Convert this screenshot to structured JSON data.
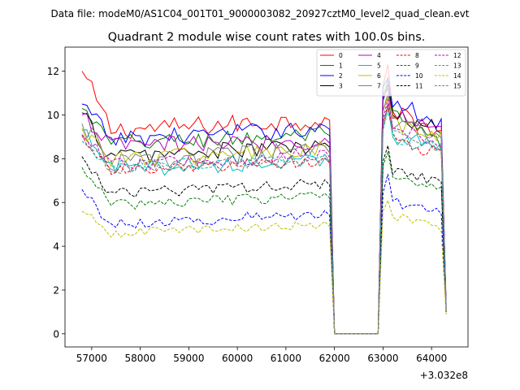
{
  "chart_data": {
    "type": "line",
    "suptitle": "Data file: modeM0/AS1C04_001T01_9000003082_20927cztM0_level2_quad_clean.evt",
    "title": "Quadrant 2 module wise count rates with 100.0s bins.",
    "xlabel": "",
    "ylabel": "",
    "x_offset_label": "+3.032e8",
    "xlim": [
      56450,
      64750
    ],
    "ylim": [
      -0.6,
      13.1
    ],
    "x_ticks": [
      57000,
      58000,
      59000,
      60000,
      61000,
      62000,
      63000,
      64000
    ],
    "x_tick_labels": [
      "57000",
      "58000",
      "59000",
      "60000",
      "61000",
      "62000",
      "63000",
      "64000"
    ],
    "y_ticks": [
      0,
      2,
      4,
      6,
      8,
      10,
      12
    ],
    "y_tick_labels": [
      "0",
      "2",
      "4",
      "6",
      "8",
      "10",
      "12"
    ],
    "legend_position": "top-right",
    "x_range": {
      "gti1_start": 56800,
      "gti1_end": 61900,
      "gap_start": 62000,
      "gap_end": 62900,
      "gti2_start": 63000,
      "gti2_end": 64200,
      "last": 64300,
      "step": 100
    },
    "series": [
      {
        "name": "0",
        "color": "#ff0000",
        "dash": false,
        "seg1": {
          "start": 12.0,
          "level": 9.3,
          "end": 9.8
        },
        "seg2": {
          "peak": 12.3,
          "level": 10.3,
          "end": 9.1
        },
        "last": 1.3,
        "noise": 0.45
      },
      {
        "name": "1",
        "color": "#008000",
        "dash": false,
        "seg1": {
          "start": 10.3,
          "level": 8.7,
          "end": 9.1
        },
        "seg2": {
          "peak": 11.6,
          "level": 10.0,
          "end": 8.6
        },
        "last": 1.2,
        "noise": 0.4
      },
      {
        "name": "2",
        "color": "#0000ff",
        "dash": false,
        "seg1": {
          "start": 10.5,
          "level": 8.9,
          "end": 9.4
        },
        "seg2": {
          "peak": 11.7,
          "level": 10.6,
          "end": 9.6
        },
        "last": 1.3,
        "noise": 0.4
      },
      {
        "name": "3",
        "color": "#000000",
        "dash": false,
        "seg1": {
          "start": 10.1,
          "level": 8.1,
          "end": 8.6
        },
        "seg2": {
          "peak": 11.4,
          "level": 9.9,
          "end": 9.3
        },
        "last": 1.2,
        "noise": 0.4
      },
      {
        "name": "4",
        "color": "#bf00bf",
        "dash": false,
        "seg1": {
          "start": 10.0,
          "level": 8.6,
          "end": 8.8
        },
        "seg2": {
          "peak": 11.2,
          "level": 10.2,
          "end": 9.2
        },
        "last": 1.2,
        "noise": 0.4
      },
      {
        "name": "5",
        "color": "#00bfbf",
        "dash": false,
        "seg1": {
          "start": 9.3,
          "level": 7.5,
          "end": 7.9
        },
        "seg2": {
          "peak": 10.4,
          "level": 9.0,
          "end": 8.8
        },
        "last": 1.1,
        "noise": 0.35
      },
      {
        "name": "6",
        "color": "#bfbf00",
        "dash": false,
        "seg1": {
          "start": 9.4,
          "level": 8.0,
          "end": 8.4
        },
        "seg2": {
          "peak": 10.8,
          "level": 9.6,
          "end": 8.9
        },
        "last": 1.1,
        "noise": 0.4
      },
      {
        "name": "7",
        "color": "#808080",
        "dash": false,
        "seg1": {
          "start": 9.6,
          "level": 7.8,
          "end": 8.4
        },
        "seg2": {
          "peak": 11.0,
          "level": 9.5,
          "end": 9.0
        },
        "last": 1.1,
        "noise": 0.45
      },
      {
        "name": "8",
        "color": "#ff0000",
        "dash": true,
        "seg1": {
          "start": 9.1,
          "level": 7.4,
          "end": 7.9
        },
        "seg2": {
          "peak": 10.5,
          "level": 9.0,
          "end": 8.1
        },
        "last": 1.1,
        "noise": 0.3
      },
      {
        "name": "9",
        "color": "#008000",
        "dash": true,
        "seg1": {
          "start": 7.6,
          "level": 5.9,
          "end": 6.3
        },
        "seg2": {
          "peak": 8.3,
          "level": 7.3,
          "end": 6.7
        },
        "last": 1.0,
        "noise": 0.25
      },
      {
        "name": "10",
        "color": "#0000ff",
        "dash": true,
        "seg1": {
          "start": 6.6,
          "level": 5.0,
          "end": 5.5
        },
        "seg2": {
          "peak": 7.3,
          "level": 6.0,
          "end": 5.7
        },
        "last": 0.9,
        "noise": 0.25
      },
      {
        "name": "11",
        "color": "#000000",
        "dash": true,
        "seg1": {
          "start": 8.1,
          "level": 6.4,
          "end": 6.9
        },
        "seg2": {
          "peak": 8.6,
          "level": 7.5,
          "end": 6.9
        },
        "last": 1.0,
        "noise": 0.25
      },
      {
        "name": "12",
        "color": "#bf00bf",
        "dash": true,
        "seg1": {
          "start": 9.1,
          "level": 7.7,
          "end": 8.2
        },
        "seg2": {
          "peak": 10.7,
          "level": 9.4,
          "end": 8.8
        },
        "last": 1.1,
        "noise": 0.3
      },
      {
        "name": "13",
        "color": "#00bfbf",
        "dash": true,
        "seg1": {
          "start": 8.8,
          "level": 7.6,
          "end": 8.0
        },
        "seg2": {
          "peak": 10.2,
          "level": 8.9,
          "end": 8.4
        },
        "last": 1.1,
        "noise": 0.3
      },
      {
        "name": "14",
        "color": "#bfbf00",
        "dash": true,
        "seg1": {
          "start": 5.6,
          "level": 4.6,
          "end": 5.0
        },
        "seg2": {
          "peak": 6.1,
          "level": 5.4,
          "end": 4.8
        },
        "last": 0.9,
        "noise": 0.2
      },
      {
        "name": "15",
        "color": "#808080",
        "dash": true,
        "seg1": {
          "start": 9.0,
          "level": 7.6,
          "end": 8.0
        },
        "seg2": {
          "peak": 10.3,
          "level": 9.1,
          "end": 8.6
        },
        "last": 1.1,
        "noise": 0.3
      }
    ]
  }
}
